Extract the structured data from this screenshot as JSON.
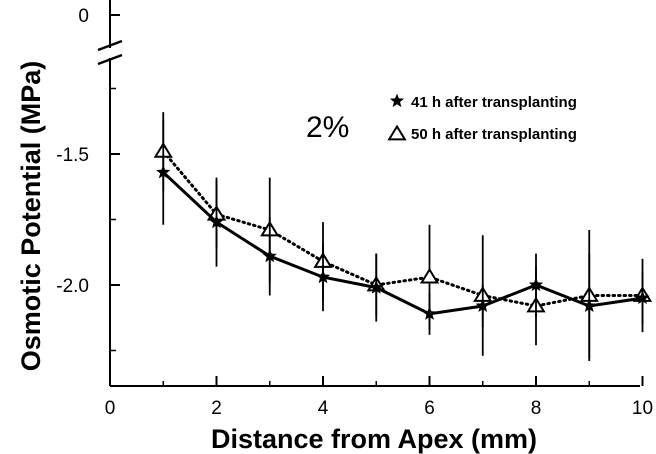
{
  "chart_data": {
    "type": "line",
    "title": "",
    "xlabel": "Distance from Apex (mm)",
    "ylabel": "Osmotic Potential (MPa)",
    "xlim": [
      0,
      10.8
    ],
    "ylim": [
      -2.5,
      -1.0
    ],
    "axis_break": {
      "top_value": 0,
      "top_label": "0"
    },
    "x_ticks": [
      0,
      2,
      4,
      6,
      8,
      10
    ],
    "x_tick_labels": [
      "0",
      "2",
      "4",
      "6",
      "8",
      "10"
    ],
    "y_ticks": [
      -1.5,
      -2.0
    ],
    "y_tick_labels": [
      "-1.5",
      "-2.0"
    ],
    "annotation": "2%",
    "grid": false,
    "legend_position": "top-right",
    "series": [
      {
        "name": "41 h after transplanting",
        "marker": "star",
        "line_style": "solid",
        "x": [
          1,
          2,
          3,
          4,
          5,
          6,
          7,
          8,
          9,
          10
        ],
        "y": [
          -1.57,
          -1.76,
          -1.89,
          -1.97,
          -2.01,
          -2.11,
          -2.08,
          -2.0,
          -2.08,
          -2.05
        ],
        "err": [
          0.2,
          0.17,
          0.15,
          0.13,
          0.13,
          0.08,
          0.08,
          0.12,
          0.2,
          0.1
        ]
      },
      {
        "name": "50 h after transplanting",
        "marker": "triangle",
        "line_style": "dotted",
        "x": [
          1,
          2,
          3,
          4,
          5,
          6,
          7,
          8,
          9,
          10
        ],
        "y": [
          -1.49,
          -1.73,
          -1.79,
          -1.91,
          -2.0,
          -1.97,
          -2.04,
          -2.08,
          -2.04,
          -2.04
        ],
        "err": [
          0.15,
          0.13,
          0.2,
          0.15,
          0.12,
          0.2,
          0.23,
          0.15,
          0.25,
          0.14
        ]
      }
    ]
  }
}
